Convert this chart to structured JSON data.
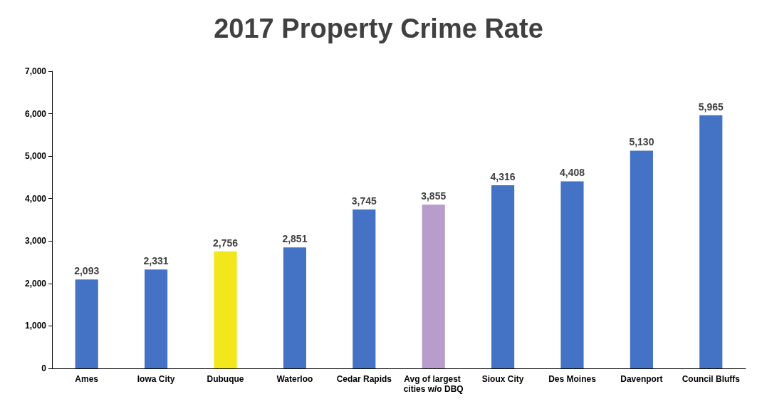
{
  "chart_data": {
    "type": "bar",
    "title": "2017 Property Crime Rate",
    "categories": [
      "Ames",
      "Iowa City",
      "Dubuque",
      "Waterloo",
      "Cedar Rapids",
      "Avg of largest cities w/o DBQ",
      "Sioux City",
      "Des Moines",
      "Davenport",
      "Council Bluffs"
    ],
    "values": [
      2093,
      2331,
      2756,
      2851,
      3745,
      3855,
      4316,
      4408,
      5130,
      5965
    ],
    "value_labels": [
      "2,093",
      "2,331",
      "2,756",
      "2,851",
      "3,745",
      "3,855",
      "4,316",
      "4,408",
      "5,130",
      "5,965"
    ],
    "colors": [
      "#4472c4",
      "#4472c4",
      "#f2e71c",
      "#4472c4",
      "#4472c4",
      "#b89ccb",
      "#4472c4",
      "#4472c4",
      "#4472c4",
      "#4472c4"
    ],
    "ylim": [
      0,
      7000
    ],
    "yticks": [
      0,
      {
        "value": 1000,
        "label": "1,000"
      },
      {
        "value": 2000,
        "label": "2,000"
      },
      {
        "value": 3000,
        "label": "3,000"
      },
      {
        "value": 4000,
        "label": "4,000"
      },
      {
        "value": 5000,
        "label": "5,000"
      },
      {
        "value": 6000,
        "label": "6,000"
      },
      {
        "value": 7000,
        "label": "7,000"
      }
    ]
  }
}
